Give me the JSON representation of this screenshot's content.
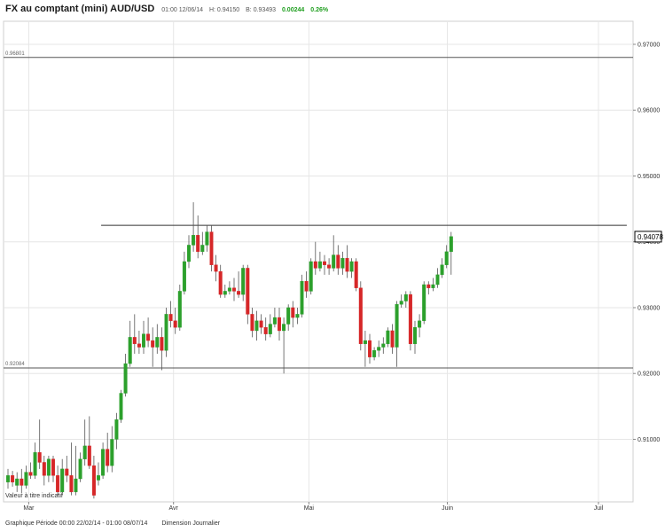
{
  "header": {
    "title": "FX au comptant  (mini) AUD/USD",
    "datetime": "01:00 12/06/14",
    "high": "H: 0.94150",
    "bid": "B: 0.93493",
    "change": "0.00244",
    "change_pct": "0.26%"
  },
  "watermark": "Valeur à titre indicatif",
  "footer": {
    "period": "Graphique Période 00:00 22/02/14 - 01:00 08/07/14",
    "dimension": "Dimension Journalier"
  },
  "colors": {
    "up": "#2ca02c",
    "down": "#d62728",
    "grid": "#e6e6e6",
    "level": "#555555"
  },
  "chart_data": {
    "type": "candlestick",
    "ylim": [
      0.9005,
      0.9735
    ],
    "y_ticks": [
      "0.97000",
      "0.96000",
      "0.95000",
      "0.94000",
      "0.93000",
      "0.92000",
      "0.91000"
    ],
    "x_ticks": [
      {
        "label": "Mar",
        "pos": 0.04
      },
      {
        "label": "Avr",
        "pos": 0.27
      },
      {
        "label": "Mai",
        "pos": 0.485
      },
      {
        "label": "Juin",
        "pos": 0.705
      },
      {
        "label": "Juil",
        "pos": 0.945
      }
    ],
    "last_price": "0.94078",
    "last_value": 0.94078,
    "levels": [
      {
        "label": "0.96801",
        "value": 0.96801
      },
      {
        "label": "0.92084",
        "value": 0.92084
      }
    ],
    "resistance": {
      "value": 0.9425,
      "from": 0.155,
      "to": 0.99
    },
    "candles": [
      [
        0.9035,
        0.9045,
        0.9055,
        0.9025
      ],
      [
        0.9045,
        0.9035,
        0.9052,
        0.9028
      ],
      [
        0.903,
        0.904,
        0.905,
        0.902
      ],
      [
        0.904,
        0.903,
        0.9055,
        0.9018
      ],
      [
        0.903,
        0.905,
        0.906,
        0.9025
      ],
      [
        0.905,
        0.9045,
        0.9065,
        0.904
      ],
      [
        0.9045,
        0.908,
        0.9095,
        0.904
      ],
      [
        0.908,
        0.9065,
        0.913,
        0.9055
      ],
      [
        0.9065,
        0.9045,
        0.9075,
        0.903
      ],
      [
        0.9045,
        0.907,
        0.9075,
        0.9035
      ],
      [
        0.907,
        0.9045,
        0.9075,
        0.9035
      ],
      [
        0.9045,
        0.902,
        0.906,
        0.9015
      ],
      [
        0.902,
        0.9055,
        0.907,
        0.9015
      ],
      [
        0.9055,
        0.9045,
        0.9075,
        0.9035
      ],
      [
        0.9045,
        0.902,
        0.9095,
        0.9015
      ],
      [
        0.902,
        0.904,
        0.909,
        0.9015
      ],
      [
        0.904,
        0.907,
        0.908,
        0.9035
      ],
      [
        0.907,
        0.909,
        0.913,
        0.906
      ],
      [
        0.909,
        0.906,
        0.9135,
        0.9055
      ],
      [
        0.906,
        0.9015,
        0.9075,
        0.901
      ],
      [
        0.9038,
        0.9045,
        0.9065,
        0.903
      ],
      [
        0.9045,
        0.9085,
        0.9095,
        0.904
      ],
      [
        0.9085,
        0.906,
        0.911,
        0.905
      ],
      [
        0.906,
        0.91,
        0.912,
        0.905
      ],
      [
        0.91,
        0.913,
        0.914,
        0.9085
      ],
      [
        0.913,
        0.917,
        0.9175,
        0.9125
      ],
      [
        0.917,
        0.9215,
        0.923,
        0.9165
      ],
      [
        0.9215,
        0.9255,
        0.928,
        0.921
      ],
      [
        0.9255,
        0.9245,
        0.929,
        0.923
      ],
      [
        0.9245,
        0.924,
        0.9265,
        0.923
      ],
      [
        0.924,
        0.926,
        0.928,
        0.923
      ],
      [
        0.926,
        0.925,
        0.9285,
        0.924
      ],
      [
        0.925,
        0.924,
        0.927,
        0.921
      ],
      [
        0.924,
        0.9255,
        0.9275,
        0.923
      ],
      [
        0.9255,
        0.9235,
        0.927,
        0.9205
      ],
      [
        0.9235,
        0.929,
        0.93,
        0.9225
      ],
      [
        0.929,
        0.928,
        0.931,
        0.927
      ],
      [
        0.928,
        0.927,
        0.93,
        0.926
      ],
      [
        0.927,
        0.9325,
        0.9335,
        0.9265
      ],
      [
        0.9325,
        0.937,
        0.9385,
        0.932
      ],
      [
        0.937,
        0.9395,
        0.941,
        0.936
      ],
      [
        0.9395,
        0.941,
        0.946,
        0.9385
      ],
      [
        0.941,
        0.9385,
        0.944,
        0.9375
      ],
      [
        0.9385,
        0.9395,
        0.9415,
        0.938
      ],
      [
        0.9395,
        0.9415,
        0.9425,
        0.9385
      ],
      [
        0.9415,
        0.9365,
        0.9425,
        0.9355
      ],
      [
        0.9365,
        0.9355,
        0.938,
        0.934
      ],
      [
        0.9355,
        0.932,
        0.9365,
        0.9315
      ],
      [
        0.932,
        0.9325,
        0.9335,
        0.9315
      ],
      [
        0.9325,
        0.933,
        0.934,
        0.932
      ],
      [
        0.933,
        0.9325,
        0.9345,
        0.931
      ],
      [
        0.9325,
        0.932,
        0.9355,
        0.9315
      ],
      [
        0.932,
        0.936,
        0.9365,
        0.931
      ],
      [
        0.936,
        0.929,
        0.9365,
        0.9275
      ],
      [
        0.929,
        0.9265,
        0.93,
        0.9255
      ],
      [
        0.9265,
        0.928,
        0.9295,
        0.925
      ],
      [
        0.928,
        0.927,
        0.929,
        0.926
      ],
      [
        0.927,
        0.926,
        0.9285,
        0.925
      ],
      [
        0.926,
        0.9275,
        0.929,
        0.9255
      ],
      [
        0.9275,
        0.9285,
        0.93,
        0.927
      ],
      [
        0.9285,
        0.9265,
        0.93,
        0.925
      ],
      [
        0.9265,
        0.9275,
        0.9285,
        0.92
      ],
      [
        0.9275,
        0.93,
        0.9305,
        0.9265
      ],
      [
        0.93,
        0.9285,
        0.931,
        0.927
      ],
      [
        0.9285,
        0.929,
        0.93,
        0.9275
      ],
      [
        0.929,
        0.934,
        0.935,
        0.9285
      ],
      [
        0.934,
        0.9325,
        0.9355,
        0.9315
      ],
      [
        0.9325,
        0.937,
        0.9375,
        0.932
      ],
      [
        0.937,
        0.936,
        0.94,
        0.935
      ],
      [
        0.936,
        0.937,
        0.9385,
        0.9355
      ],
      [
        0.937,
        0.9365,
        0.938,
        0.935
      ],
      [
        0.9365,
        0.936,
        0.9375,
        0.935
      ],
      [
        0.936,
        0.938,
        0.941,
        0.9355
      ],
      [
        0.938,
        0.936,
        0.9395,
        0.935
      ],
      [
        0.936,
        0.9375,
        0.9385,
        0.935
      ],
      [
        0.9375,
        0.9355,
        0.9395,
        0.9345
      ],
      [
        0.9355,
        0.937,
        0.9375,
        0.9345
      ],
      [
        0.937,
        0.933,
        0.9375,
        0.9325
      ],
      [
        0.933,
        0.9245,
        0.934,
        0.9235
      ],
      [
        0.9245,
        0.925,
        0.9265,
        0.921
      ],
      [
        0.925,
        0.9225,
        0.926,
        0.9215
      ],
      [
        0.9225,
        0.9235,
        0.924,
        0.922
      ],
      [
        0.9235,
        0.924,
        0.925,
        0.9225
      ],
      [
        0.924,
        0.9245,
        0.9255,
        0.923
      ],
      [
        0.9245,
        0.9265,
        0.927,
        0.924
      ],
      [
        0.9265,
        0.924,
        0.9275,
        0.923
      ],
      [
        0.924,
        0.9305,
        0.931,
        0.921
      ],
      [
        0.9305,
        0.931,
        0.932,
        0.93
      ],
      [
        0.931,
        0.932,
        0.9325,
        0.93
      ],
      [
        0.932,
        0.9245,
        0.9325,
        0.9235
      ],
      [
        0.9245,
        0.927,
        0.928,
        0.923
      ],
      [
        0.927,
        0.928,
        0.929,
        0.9255
      ],
      [
        0.928,
        0.9335,
        0.934,
        0.9275
      ],
      [
        0.9335,
        0.933,
        0.934,
        0.932
      ],
      [
        0.933,
        0.9335,
        0.9345,
        0.9325
      ],
      [
        0.9335,
        0.935,
        0.936,
        0.933
      ],
      [
        0.935,
        0.9365,
        0.9375,
        0.9345
      ],
      [
        0.9365,
        0.9385,
        0.9395,
        0.936
      ],
      [
        0.9385,
        0.9408,
        0.9415,
        0.935
      ]
    ]
  }
}
